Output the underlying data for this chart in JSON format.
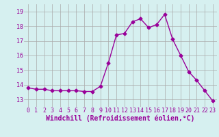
{
  "x": [
    0,
    1,
    2,
    3,
    4,
    5,
    6,
    7,
    8,
    9,
    10,
    11,
    12,
    13,
    14,
    15,
    16,
    17,
    18,
    19,
    20,
    21,
    22,
    23
  ],
  "y": [
    13.8,
    13.7,
    13.7,
    13.6,
    13.6,
    13.6,
    13.6,
    13.55,
    13.55,
    13.9,
    15.5,
    17.4,
    17.5,
    18.3,
    18.5,
    17.9,
    18.1,
    18.8,
    17.1,
    16.0,
    14.9,
    14.3,
    13.6,
    12.9
  ],
  "line_color": "#990099",
  "marker": "D",
  "marker_size": 2.5,
  "bg_color": "#d6f0f0",
  "grid_color": "#aaaaaa",
  "xlabel": "Windchill (Refroidissement éolien,°C)",
  "xlabel_fontsize": 7,
  "xlabel_color": "#990099",
  "tick_label_color": "#990099",
  "ylim": [
    12.5,
    19.5
  ],
  "yticks": [
    13,
    14,
    15,
    16,
    17,
    18,
    19
  ],
  "xticks": [
    0,
    1,
    2,
    3,
    4,
    5,
    6,
    7,
    8,
    9,
    10,
    11,
    12,
    13,
    14,
    15,
    16,
    17,
    18,
    19,
    20,
    21,
    22,
    23
  ],
  "tick_fontsize": 6
}
